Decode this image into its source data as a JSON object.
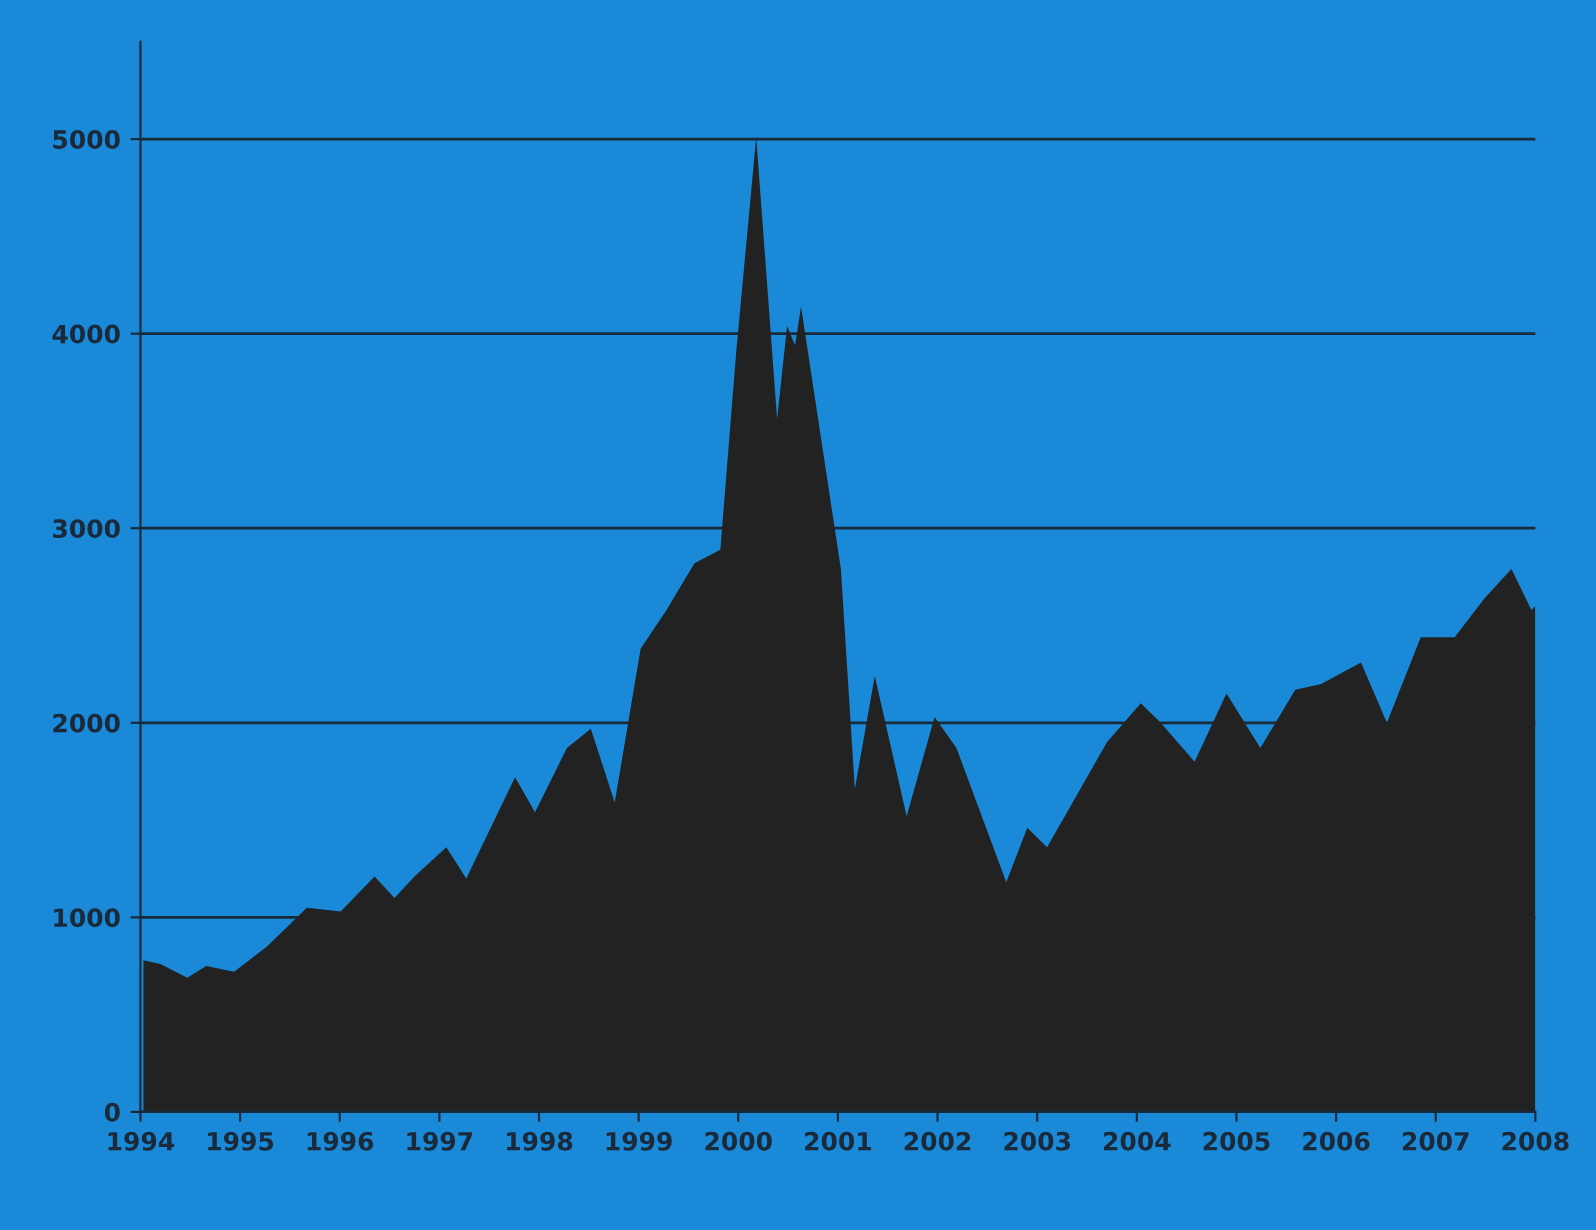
{
  "chart_data": {
    "type": "area",
    "x": [
      1994.03,
      1994.2,
      1994.47,
      1994.66,
      1994.94,
      1995.27,
      1995.67,
      1996.01,
      1996.35,
      1996.55,
      1996.75,
      1997.07,
      1997.27,
      1997.76,
      1997.96,
      1998.28,
      1998.52,
      1998.76,
      1999.02,
      1999.28,
      1999.56,
      1999.82,
      1999.98,
      2000.18,
      2000.39,
      2000.49,
      2000.57,
      2000.63,
      2001.03,
      2001.17,
      2001.37,
      2001.69,
      2001.97,
      2002.19,
      2002.69,
      2002.9,
      2003.1,
      2003.7,
      2004.04,
      2004.24,
      2004.58,
      2004.9,
      2005.24,
      2005.59,
      2005.85,
      2006.25,
      2006.51,
      2006.85,
      2007.19,
      2007.49,
      2007.76,
      2007.96,
      2008.0
    ],
    "values": [
      780,
      760,
      690,
      750,
      720,
      850,
      1050,
      1030,
      1210,
      1100,
      1210,
      1360,
      1200,
      1720,
      1540,
      1870,
      1970,
      1590,
      2380,
      2580,
      2820,
      2890,
      3910,
      5010,
      3560,
      4040,
      3940,
      4140,
      2790,
      1660,
      2240,
      1520,
      2030,
      1870,
      1180,
      1460,
      1360,
      1900,
      2100,
      2000,
      1800,
      2150,
      1870,
      2170,
      2200,
      2310,
      2000,
      2440,
      2440,
      2640,
      2790,
      2580,
      2600
    ],
    "color": "#222222",
    "xlim": [
      1994,
      2008
    ],
    "xticks": [
      1994,
      1995,
      1996,
      1997,
      1998,
      1999,
      2000,
      2001,
      2002,
      2003,
      2004,
      2005,
      2006,
      2007,
      2008
    ],
    "ylim": [
      0,
      5500
    ],
    "yticks": [
      0,
      1000,
      2000,
      3000,
      4000,
      5000
    ],
    "grid": "y"
  }
}
